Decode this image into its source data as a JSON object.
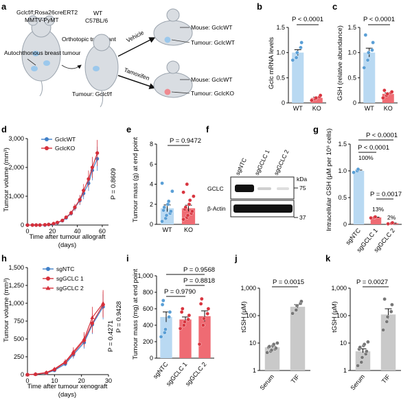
{
  "colors": {
    "wt": "#b9d9f2",
    "wt_dot": "#5a9fd6",
    "ko": "#ef6b73",
    "ko_dot": "#d8353f",
    "line_wt": "#3f7fc8",
    "line_ko": "#d62f3a",
    "grey_bar": "#c9c9c9",
    "grey_dot": "#777777",
    "mouse": "#d9dde2",
    "tumour": "#9bc8ec",
    "tumour_ko": "#ef8a90"
  },
  "panel_a": {
    "label": "a",
    "donor_genotype": "Gclcf/f;Rosa26creERT2",
    "donor_model": "MMTV-PyMT",
    "recipient_line1": "WT",
    "recipient_line2": "C57BL/6",
    "autochthonous": "Autochthonous breast tumour",
    "orthotopic": "Orthotopic transplant",
    "tumour_recipient": "Tumour: Gclcf/f",
    "vehicle": "Vehicle",
    "tamoxifen": "Tamoxifen",
    "mouse_wt": "Mouse: GclcWT",
    "tumour_wt": "Tumour: GclcWT",
    "mouse_wt2": "Mouse: GclcWT",
    "tumour_ko": "Tumour: GclcKO"
  },
  "panel_b": {
    "label": "b",
    "ylabel": "Gclc mRNA levels",
    "stat": "P < 0.0001",
    "ticks": [
      "0",
      "0.5",
      "1.0",
      "1.5"
    ],
    "xcats": [
      "WT",
      "KO"
    ]
  },
  "panel_c": {
    "label": "c",
    "ylabel": "GSH (relative abundance)",
    "stat": "P < 0.0001",
    "ticks": [
      "0",
      "0.5",
      "1.0",
      "1.5"
    ],
    "xcats": [
      "WT",
      "KO"
    ]
  },
  "panel_d": {
    "label": "d",
    "ylabel": "Tumour volume (mm³)",
    "xlabel": "Time after tumour allograft",
    "xlabel2": "(days)",
    "stat": "P = 0.8609",
    "legend_wt": "GclcWT",
    "legend_ko": "GclcKO",
    "yticks": [
      "0",
      "1,000",
      "2,000",
      "3,000"
    ],
    "xticks": [
      "0",
      "20",
      "40",
      "60"
    ]
  },
  "panel_e": {
    "label": "e",
    "ylabel": "Tumour mass (g) at end point",
    "stat": "P = 0.9472",
    "ticks": [
      "0",
      "2",
      "4",
      "6",
      "8"
    ],
    "xcats": [
      "WT",
      "KO"
    ]
  },
  "panel_f": {
    "label": "f",
    "lanes": [
      "sgNTC",
      "sgGCLC 1",
      "sgGCLC 2"
    ],
    "kda": "kDa",
    "row1": "GCLC",
    "row2": "β-Actin",
    "mw1": "75",
    "mw2": "37"
  },
  "panel_g": {
    "label": "g",
    "ylabel": "Intracellular GSH (μM per 10⁶ cells)",
    "stat1": "P < 0.0001",
    "stat2": "P < 0.0001",
    "stat3": "P = 0.0017",
    "pct1": "100%",
    "pct2": "13%",
    "pct3": "2%",
    "ticks": [
      "0",
      "0.5",
      "1.0",
      "1.5"
    ],
    "xcats": [
      "sgNTC",
      "sgGCLC 1",
      "sgGCLC 2"
    ]
  },
  "panel_h": {
    "label": "h",
    "ylabel": "Tumour volume (mm³)",
    "xlabel": "Time after tumour xenograft",
    "xlabel2": "(days)",
    "stat1": "P = 0.4271",
    "stat2": "P = 0.9428",
    "legend": [
      "sgNTC",
      "sgGCLC 1",
      "sgGCLC 2"
    ],
    "yticks": [
      "0",
      "250",
      "500",
      "750",
      "1,000",
      "1,250",
      "1,500"
    ],
    "xticks": [
      "0",
      "10",
      "20",
      "30"
    ]
  },
  "panel_i": {
    "label": "i",
    "ylabel": "Tumour mass (mg) at end point",
    "stat1": "P = 0.9568",
    "stat2": "P = 0.8818",
    "stat3": "P = 0.9790",
    "ticks": [
      "0",
      "200",
      "400",
      "600",
      "800",
      "1,000"
    ],
    "xcats": [
      "sgNTC",
      "sgGCLC 1",
      "sgGCLC 2"
    ]
  },
  "panel_j": {
    "label": "j",
    "ylabel": "tGSH (μM)",
    "stat": "P = 0.0015",
    "ticks": [
      "1",
      "10",
      "100",
      "1,000"
    ],
    "xcats": [
      "Serum",
      "TIF"
    ]
  },
  "panel_k": {
    "label": "k",
    "ylabel": "tGSH (μM)",
    "stat": "P = 0.0027",
    "ticks": [
      "1",
      "10",
      "100",
      "1,000"
    ],
    "xcats": [
      "Serum",
      "TIF"
    ]
  },
  "chart_data": [
    {
      "panel": "b",
      "type": "bar",
      "categories": [
        "WT",
        "KO"
      ],
      "values": [
        1.0,
        0.1
      ],
      "ylim": [
        0,
        1.5
      ],
      "points": [
        [
          0.85,
          0.9,
          1.0,
          1.1,
          1.2
        ],
        [
          0.05,
          0.08,
          0.1,
          0.12,
          0.15
        ]
      ]
    },
    {
      "panel": "c",
      "type": "bar",
      "categories": [
        "WT",
        "KO"
      ],
      "values": [
        1.0,
        0.18
      ],
      "ylim": [
        0,
        1.5
      ],
      "points": [
        [
          0.7,
          0.85,
          1.0,
          1.05,
          1.2,
          1.35
        ],
        [
          0.1,
          0.15,
          0.18,
          0.2,
          0.22,
          0.25
        ]
      ]
    },
    {
      "panel": "d",
      "type": "line",
      "x": [
        0,
        4,
        7,
        10,
        14,
        17,
        21,
        24,
        28,
        31,
        35,
        38,
        42,
        45,
        49,
        52,
        56
      ],
      "series": [
        {
          "name": "GclcWT",
          "values": [
            0,
            0,
            0,
            0,
            0,
            20,
            40,
            80,
            150,
            250,
            400,
            600,
            850,
            1100,
            1450,
            1900,
            2300
          ]
        },
        {
          "name": "GclcKO",
          "values": [
            0,
            0,
            0,
            0,
            10,
            20,
            50,
            90,
            160,
            270,
            420,
            620,
            880,
            1200,
            1600,
            2000,
            2500
          ]
        }
      ],
      "ylim": [
        0,
        3000
      ],
      "xlim": [
        0,
        65
      ]
    },
    {
      "panel": "e",
      "type": "bar",
      "categories": [
        "WT",
        "KO"
      ],
      "values": [
        1.6,
        1.6
      ],
      "ylim": [
        0,
        8
      ],
      "points": [
        [
          0.3,
          0.6,
          0.9,
          1.1,
          1.3,
          1.4,
          1.7,
          2.0,
          2.3,
          3.3,
          4.1
        ],
        [
          0.5,
          0.7,
          0.9,
          1.1,
          1.3,
          1.5,
          1.7,
          2.0,
          2.4,
          2.8,
          3.2,
          4.0
        ]
      ]
    },
    {
      "panel": "g",
      "type": "bar",
      "categories": [
        "sgNTC",
        "sgGCLC 1",
        "sgGCLC 2"
      ],
      "values": [
        1.0,
        0.13,
        0.02
      ],
      "ylim": [
        0,
        1.5
      ],
      "points": [
        [
          0.97,
          1.0,
          1.03
        ],
        [
          0.12,
          0.13,
          0.14
        ],
        [
          0.01,
          0.02,
          0.03
        ]
      ]
    },
    {
      "panel": "h",
      "type": "line",
      "x": [
        0,
        3,
        7,
        10,
        14,
        17,
        21,
        24,
        28
      ],
      "series": [
        {
          "name": "sgNTC",
          "values": [
            0,
            5,
            20,
            60,
            150,
            280,
            450,
            700,
            950
          ]
        },
        {
          "name": "sgGCLC 1",
          "values": [
            0,
            5,
            25,
            70,
            170,
            300,
            480,
            720,
            980
          ]
        },
        {
          "name": "sgGCLC 2",
          "values": [
            0,
            8,
            30,
            80,
            180,
            320,
            500,
            800,
            1000
          ]
        }
      ],
      "ylim": [
        0,
        1500
      ],
      "xlim": [
        0,
        30
      ]
    },
    {
      "panel": "i",
      "type": "bar",
      "categories": [
        "sgNTC",
        "sgGCLC 1",
        "sgGCLC 2"
      ],
      "values": [
        500,
        470,
        510
      ],
      "ylim": [
        0,
        1000
      ],
      "points": [
        [
          260,
          310,
          350,
          500,
          560,
          650,
          700
        ],
        [
          360,
          400,
          440,
          470,
          520,
          560,
          600
        ],
        [
          170,
          400,
          480,
          540,
          600,
          660,
          720
        ]
      ]
    },
    {
      "panel": "j",
      "type": "bar",
      "categories": [
        "Serum",
        "TIF"
      ],
      "values": [
        7,
        210
      ],
      "ylim": [
        1,
        1000
      ],
      "log": true,
      "points": [
        [
          4.5,
          5,
          5.5,
          6,
          6.5,
          7,
          7.5,
          8,
          9,
          10
        ],
        [
          120,
          160,
          230,
          280,
          330
        ]
      ]
    },
    {
      "panel": "k",
      "type": "bar",
      "categories": [
        "Serum",
        "TIF"
      ],
      "values": [
        5,
        110
      ],
      "ylim": [
        1,
        1000
      ],
      "log": true,
      "points": [
        [
          1.5,
          2,
          3,
          4,
          5,
          6,
          7,
          8,
          9,
          11
        ],
        [
          30,
          60,
          90,
          140,
          250,
          400
        ]
      ]
    }
  ]
}
